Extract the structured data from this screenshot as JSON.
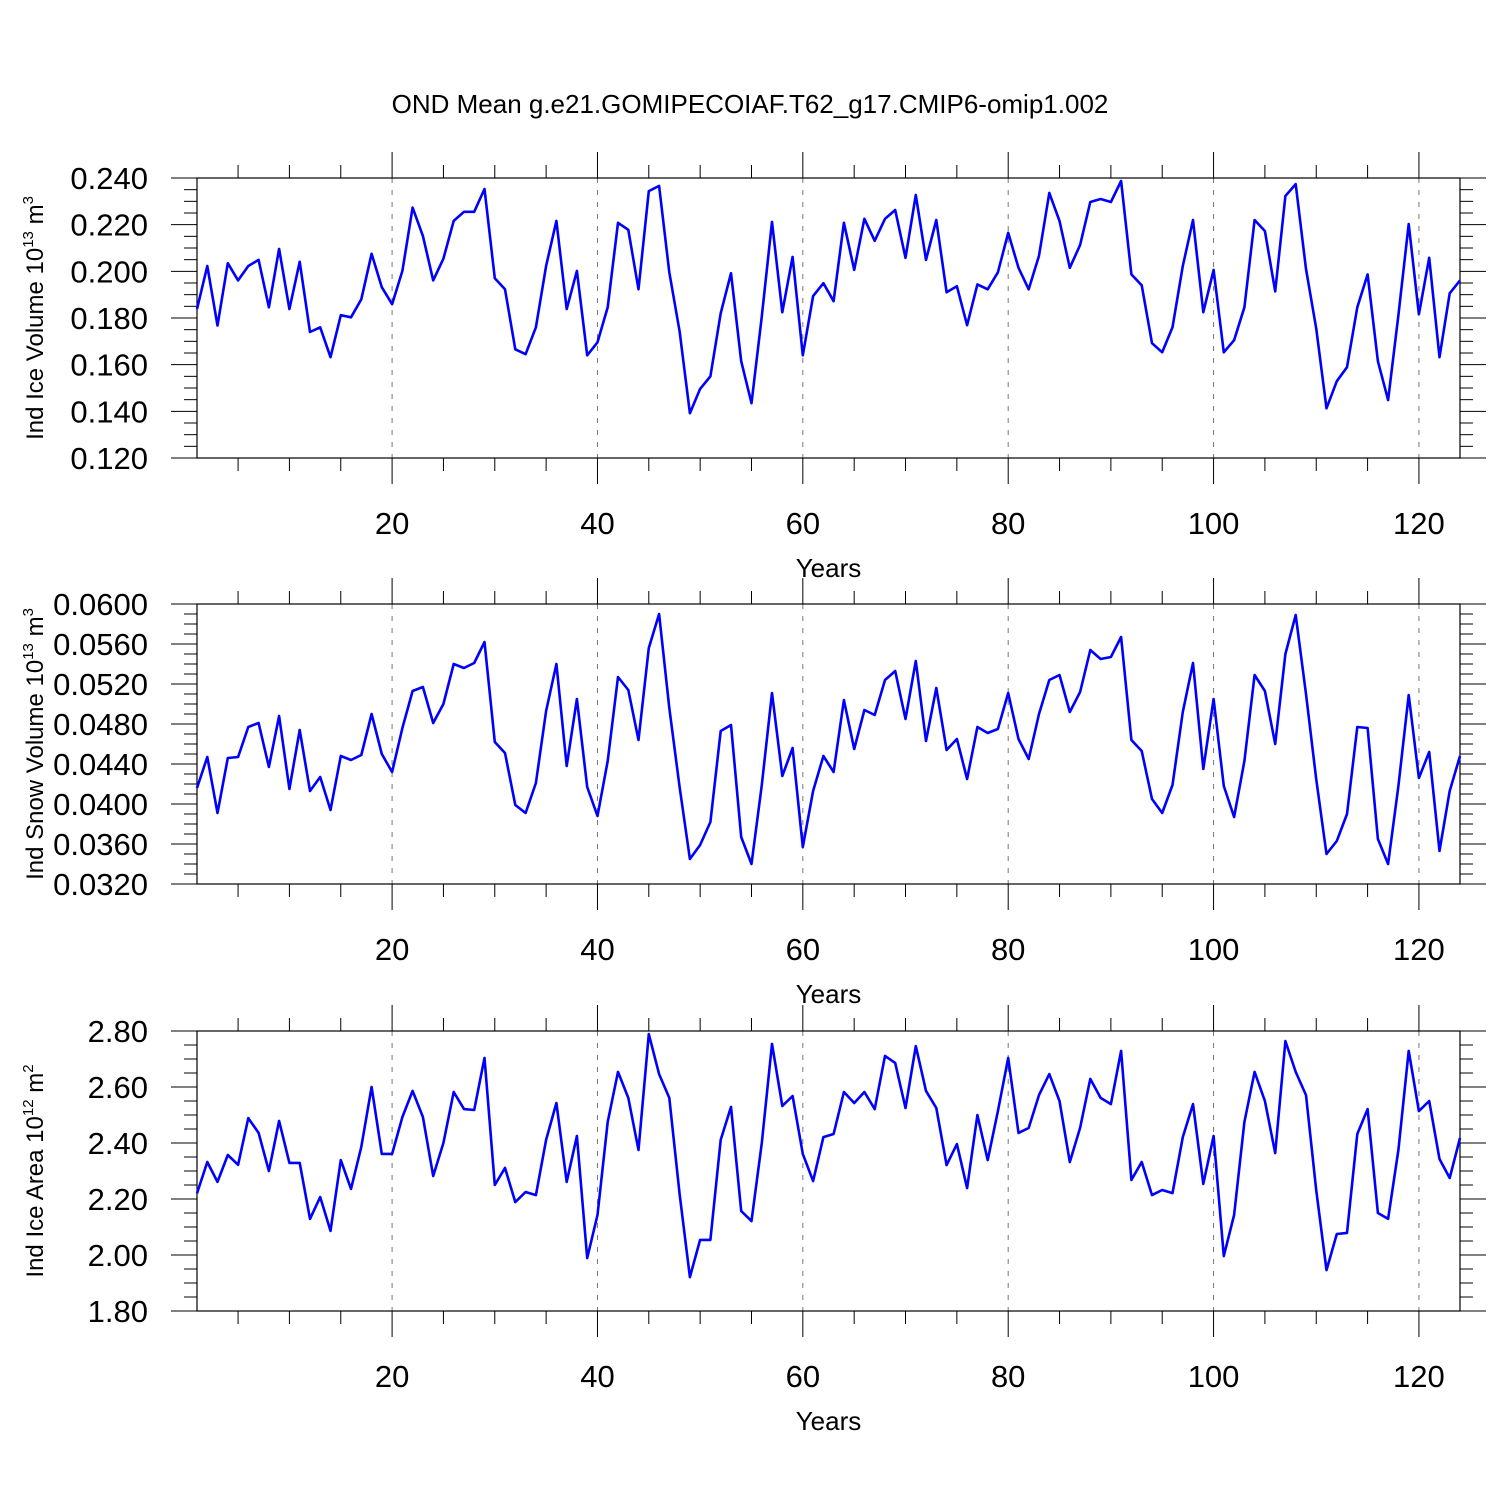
{
  "title": "OND Mean g.e21.GOMIPECOIAF.T62_g17.CMIP6-omip1.002",
  "colors": {
    "line": "#0000ff",
    "axis": "#000000",
    "grid": "#777777"
  },
  "chart_data": [
    {
      "type": "line",
      "ylabel_main": "Ind Ice Volume 10",
      "ylabel_exp": "13",
      "ylabel_unit": " m",
      "ylabel_unit_exp": "3",
      "xlabel": "Years",
      "xlim": [
        1,
        124
      ],
      "ylim": [
        0.12,
        0.24
      ],
      "major_step": 0.02,
      "minor_step": 0.005,
      "x_ticks": [
        20,
        40,
        60,
        80,
        100,
        120
      ],
      "x_tick_labels": [
        "20",
        "40",
        "60",
        "80",
        "100",
        "120"
      ],
      "y_ticks": [
        0.12,
        0.14,
        0.16,
        0.18,
        0.2,
        0.22,
        0.24
      ],
      "y_tick_labels": [
        "0.120",
        "0.140",
        "0.160",
        "0.180",
        "0.200",
        "0.220",
        "0.240"
      ],
      "values": [
        0.1838,
        0.2023,
        0.1768,
        0.2035,
        0.1961,
        0.2023,
        0.2049,
        0.1846,
        0.2096,
        0.1838,
        0.2041,
        0.174,
        0.176,
        0.1632,
        0.1812,
        0.1803,
        0.188,
        0.2075,
        0.1932,
        0.1859,
        0.2002,
        0.2273,
        0.2152,
        0.1961,
        0.2054,
        0.2216,
        0.2255,
        0.2255,
        0.2353,
        0.197,
        0.1923,
        0.1666,
        0.1645,
        0.176,
        0.2023,
        0.2216,
        0.1838,
        0.2002,
        0.164,
        0.1696,
        0.1846,
        0.2208,
        0.2178,
        0.1923,
        0.2344,
        0.2366,
        0.1996,
        0.1743,
        0.1392,
        0.1496,
        0.155,
        0.182,
        0.1992,
        0.1615,
        0.1435,
        0.1807,
        0.2212,
        0.1825,
        0.2062,
        0.164,
        0.1894,
        0.1949,
        0.1872,
        0.2208,
        0.2006,
        0.2225,
        0.2131,
        0.2225,
        0.2263,
        0.2058,
        0.2327,
        0.2049,
        0.222,
        0.191,
        0.1936,
        0.1769,
        0.1944,
        0.1923,
        0.1996,
        0.2165,
        0.2015,
        0.1923,
        0.2067,
        0.2336,
        0.2216,
        0.2015,
        0.2113,
        0.2297,
        0.231,
        0.2297,
        0.2387,
        0.1987,
        0.194,
        0.1692,
        0.1653,
        0.176,
        0.2023,
        0.222,
        0.1825,
        0.2006,
        0.1653,
        0.1705,
        0.1846,
        0.222,
        0.2173,
        0.1914,
        0.2323,
        0.2374,
        0.201,
        0.1756,
        0.1413,
        0.1529,
        0.1589,
        0.1846,
        0.1987,
        0.1615,
        0.1448,
        0.1812,
        0.2203,
        0.1816,
        0.2058,
        0.1632,
        0.1906,
        0.1961
      ]
    },
    {
      "type": "line",
      "ylabel_main": "Ind Snow Volume 10",
      "ylabel_exp": "13",
      "ylabel_unit": " m",
      "ylabel_unit_exp": "3",
      "xlabel": "Years",
      "xlim": [
        1,
        124
      ],
      "ylim": [
        0.032,
        0.06
      ],
      "major_step": 0.004,
      "minor_step": 0.001,
      "x_ticks": [
        20,
        40,
        60,
        80,
        100,
        120
      ],
      "x_tick_labels": [
        "20",
        "40",
        "60",
        "80",
        "100",
        "120"
      ],
      "y_ticks": [
        0.032,
        0.036,
        0.04,
        0.044,
        0.048,
        0.052,
        0.056,
        0.06
      ],
      "y_tick_labels": [
        "0.0320",
        "0.0360",
        "0.0400",
        "0.0440",
        "0.0480",
        "0.0520",
        "0.0560",
        "0.0600"
      ],
      "values": [
        0.0416,
        0.0447,
        0.0391,
        0.0446,
        0.0447,
        0.0477,
        0.0481,
        0.0437,
        0.0488,
        0.0415,
        0.0474,
        0.0413,
        0.0427,
        0.0394,
        0.0448,
        0.0444,
        0.0449,
        0.049,
        0.045,
        0.0432,
        0.0476,
        0.0513,
        0.0517,
        0.0481,
        0.05,
        0.054,
        0.0536,
        0.0541,
        0.0562,
        0.0462,
        0.0451,
        0.0399,
        0.0391,
        0.0421,
        0.0493,
        0.054,
        0.0438,
        0.0505,
        0.0417,
        0.0388,
        0.0443,
        0.0527,
        0.0514,
        0.0464,
        0.0556,
        0.059,
        0.0496,
        0.0417,
        0.0345,
        0.0359,
        0.0382,
        0.0473,
        0.0479,
        0.0367,
        0.034,
        0.0419,
        0.0511,
        0.0428,
        0.0456,
        0.0357,
        0.0413,
        0.0448,
        0.0432,
        0.0504,
        0.0455,
        0.0494,
        0.0489,
        0.0524,
        0.0533,
        0.0485,
        0.0543,
        0.0463,
        0.0516,
        0.0454,
        0.0465,
        0.0425,
        0.0477,
        0.0471,
        0.0475,
        0.0511,
        0.0465,
        0.0445,
        0.049,
        0.0524,
        0.0529,
        0.0492,
        0.0512,
        0.0554,
        0.0545,
        0.0547,
        0.0567,
        0.0464,
        0.0453,
        0.0405,
        0.0391,
        0.0419,
        0.0492,
        0.0541,
        0.0435,
        0.0505,
        0.0418,
        0.0387,
        0.0443,
        0.0529,
        0.0513,
        0.046,
        0.055,
        0.0589,
        0.051,
        0.0425,
        0.035,
        0.0363,
        0.039,
        0.0477,
        0.0476,
        0.0365,
        0.034,
        0.0418,
        0.0509,
        0.0426,
        0.0452,
        0.0353,
        0.0413,
        0.0448
      ]
    },
    {
      "type": "line",
      "ylabel_main": "Ind Ice Area 10",
      "ylabel_exp": "12",
      "ylabel_unit": " m",
      "ylabel_unit_exp": "2",
      "xlabel": "Years",
      "xlim": [
        1,
        124
      ],
      "ylim": [
        1.8,
        2.8
      ],
      "major_step": 0.2,
      "minor_step": 0.05,
      "x_ticks": [
        20,
        40,
        60,
        80,
        100,
        120
      ],
      "x_tick_labels": [
        "20",
        "40",
        "60",
        "80",
        "100",
        "120"
      ],
      "y_ticks": [
        1.8,
        2.0,
        2.2,
        2.4,
        2.6,
        2.8
      ],
      "y_tick_labels": [
        "1.80",
        "2.00",
        "2.20",
        "2.40",
        "2.60",
        "2.80"
      ],
      "values": [
        2.22,
        2.332,
        2.261,
        2.357,
        2.322,
        2.489,
        2.436,
        2.3,
        2.479,
        2.329,
        2.329,
        2.129,
        2.207,
        2.086,
        2.339,
        2.236,
        2.386,
        2.6,
        2.361,
        2.361,
        2.493,
        2.586,
        2.493,
        2.282,
        2.4,
        2.582,
        2.521,
        2.518,
        2.704,
        2.25,
        2.311,
        2.189,
        2.225,
        2.214,
        2.411,
        2.543,
        2.261,
        2.425,
        1.989,
        2.143,
        2.475,
        2.654,
        2.561,
        2.375,
        2.789,
        2.646,
        2.561,
        2.218,
        1.921,
        2.054,
        2.054,
        2.411,
        2.529,
        2.157,
        2.121,
        2.4,
        2.754,
        2.532,
        2.568,
        2.361,
        2.264,
        2.421,
        2.432,
        2.582,
        2.543,
        2.582,
        2.521,
        2.711,
        2.686,
        2.525,
        2.746,
        2.586,
        2.525,
        2.321,
        2.396,
        2.239,
        2.5,
        2.339,
        2.514,
        2.704,
        2.436,
        2.454,
        2.571,
        2.646,
        2.55,
        2.332,
        2.454,
        2.629,
        2.561,
        2.539,
        2.729,
        2.268,
        2.332,
        2.214,
        2.232,
        2.221,
        2.421,
        2.539,
        2.254,
        2.425,
        1.996,
        2.143,
        2.475,
        2.654,
        2.55,
        2.364,
        2.764,
        2.654,
        2.571,
        2.232,
        1.946,
        2.075,
        2.079,
        2.432,
        2.521,
        2.15,
        2.129,
        2.375,
        2.729,
        2.514,
        2.55,
        2.343,
        2.275,
        2.418
      ]
    }
  ]
}
